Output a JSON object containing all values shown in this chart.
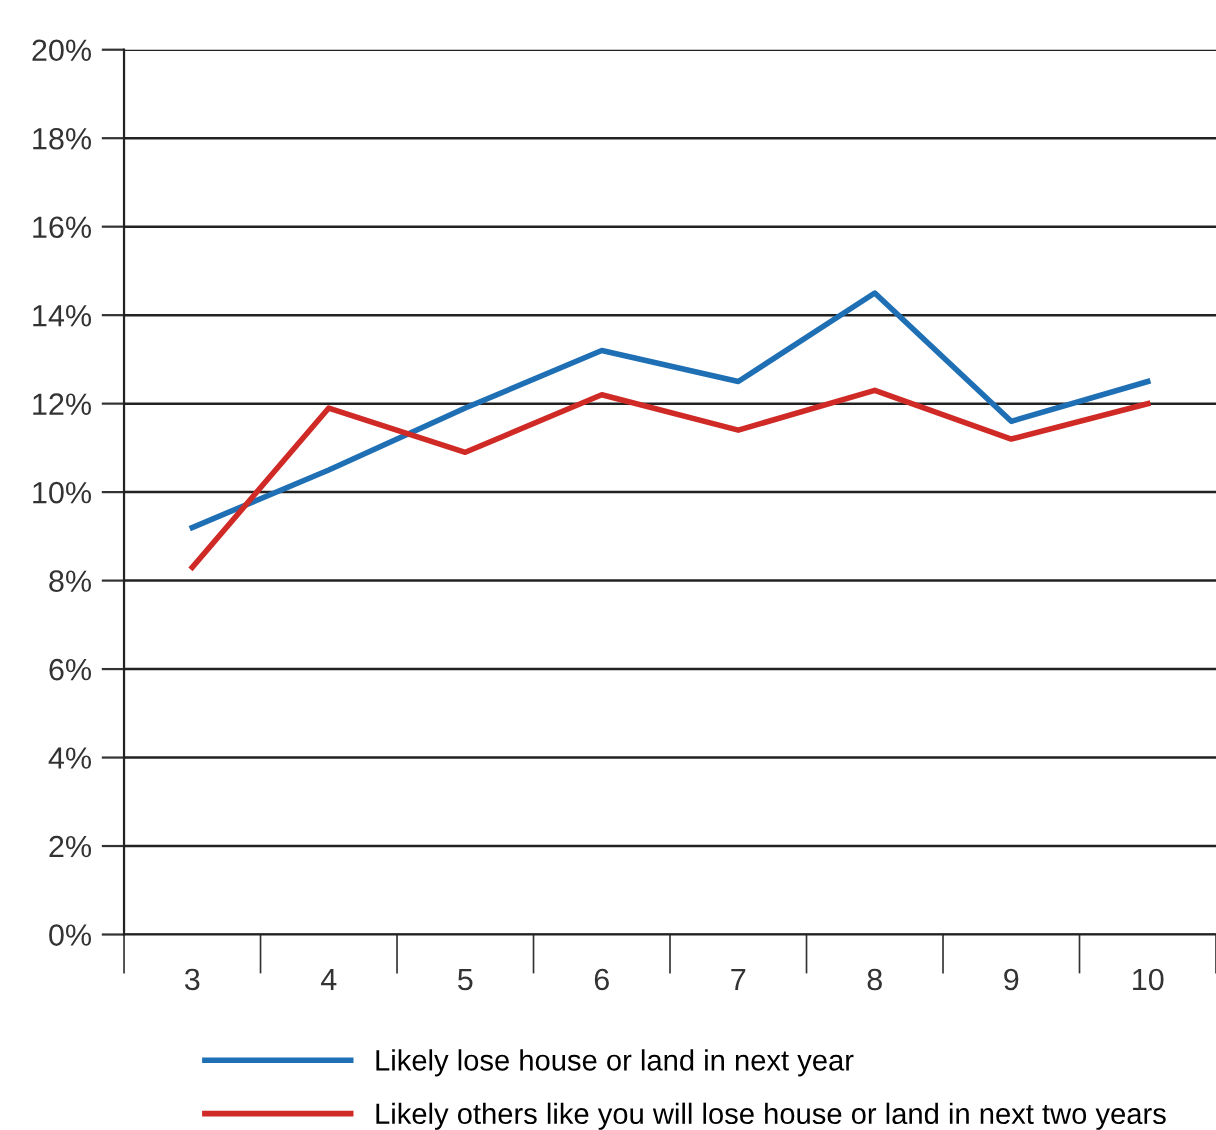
{
  "chart_data": {
    "type": "line",
    "categories": [
      "3",
      "4",
      "5",
      "6",
      "7",
      "8",
      "9",
      "10"
    ],
    "series": [
      {
        "name": "Likely lose house or land in next year",
        "color": "#1f6fb5",
        "values": [
          9.2,
          10.5,
          11.9,
          13.2,
          12.5,
          14.5,
          11.6,
          12.5
        ]
      },
      {
        "name": "Likely others like you will lose house or land in next two years",
        "color": "#d02a27",
        "values": [
          8.3,
          11.9,
          10.9,
          12.2,
          11.4,
          12.3,
          11.2,
          12.0
        ]
      }
    ],
    "ylim": [
      0,
      20
    ],
    "yticks": [
      {
        "value": 0,
        "label": "0%"
      },
      {
        "value": 2,
        "label": "2%"
      },
      {
        "value": 4,
        "label": "4%"
      },
      {
        "value": 6,
        "label": "6%"
      },
      {
        "value": 8,
        "label": "8%"
      },
      {
        "value": 10,
        "label": "10%"
      },
      {
        "value": 12,
        "label": "12%"
      },
      {
        "value": 14,
        "label": "14%"
      },
      {
        "value": 16,
        "label": "16%"
      },
      {
        "value": 18,
        "label": "18%"
      },
      {
        "value": 20,
        "label": "20%"
      }
    ],
    "grid": "y",
    "legend": "bottom",
    "marker": "none",
    "line_style": "solid"
  }
}
